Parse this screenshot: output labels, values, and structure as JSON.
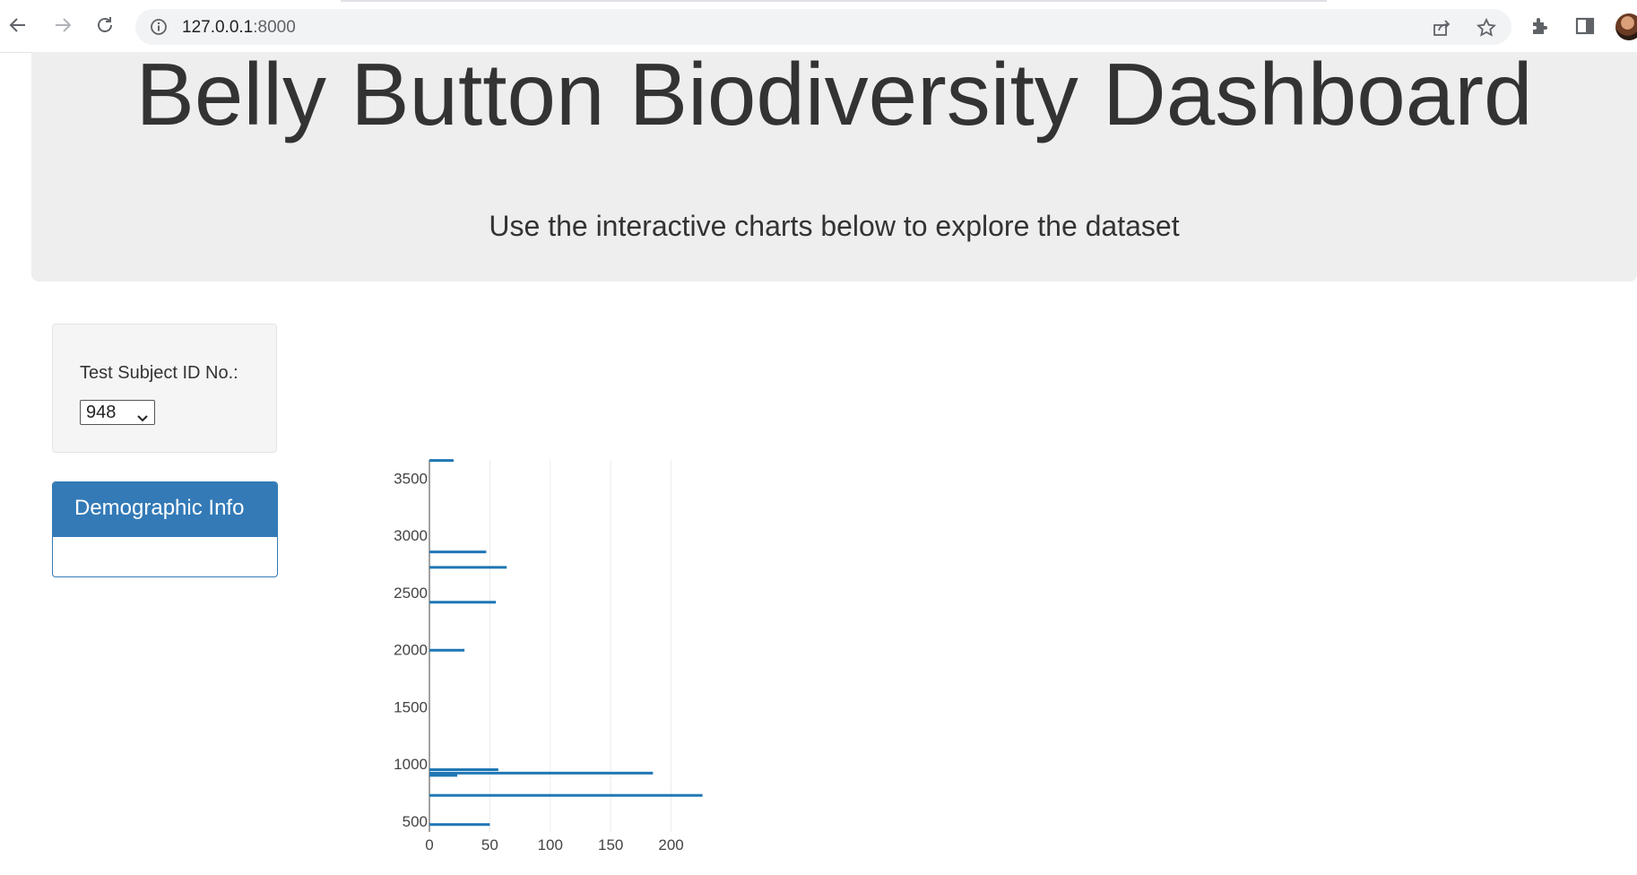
{
  "browser": {
    "url_host": "127.0.0.1",
    "url_port": ":8000",
    "icons": [
      "back-arrow-icon",
      "forward-arrow-icon",
      "reload-icon",
      "info-icon",
      "share-icon",
      "star-icon",
      "extensions-icon",
      "sidebar-icon",
      "profile-avatar"
    ]
  },
  "header": {
    "title": "Belly Button Biodiversity Dashboard",
    "subtitle": "Use the interactive charts below to explore the dataset"
  },
  "selector": {
    "label": "Test Subject ID No.:",
    "selected_value": "948"
  },
  "panel": {
    "heading": "Demographic Info"
  },
  "colors": {
    "bar": "#1f77b4",
    "panel": "#337ab7",
    "jumbotron": "#eeeeee"
  },
  "chart_data": {
    "type": "bar",
    "orientation": "horizontal",
    "title": "",
    "xlabel": "",
    "ylabel": "",
    "xlim": [
      0,
      230
    ],
    "ylim": [
      405,
      3660
    ],
    "x_ticks": [
      "0",
      "50",
      "100",
      "150",
      "200"
    ],
    "y_ticks": [
      "500",
      "1000",
      "1500",
      "2000",
      "2500",
      "3000",
      "3500"
    ],
    "grid": true,
    "bars": [
      {
        "y": 3655,
        "x": 20
      },
      {
        "y": 2855,
        "x": 47
      },
      {
        "y": 2720,
        "x": 64
      },
      {
        "y": 2415,
        "x": 55
      },
      {
        "y": 1995,
        "x": 29
      },
      {
        "y": 950,
        "x": 57
      },
      {
        "y": 920,
        "x": 185
      },
      {
        "y": 900,
        "x": 23
      },
      {
        "y": 725,
        "x": 226
      },
      {
        "y": 470,
        "x": 50
      }
    ]
  }
}
